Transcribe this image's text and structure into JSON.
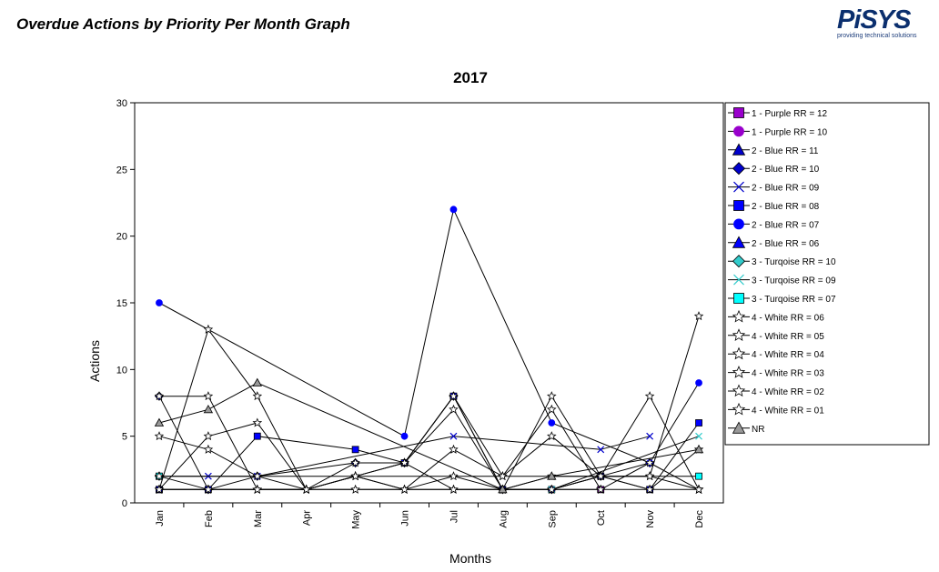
{
  "page_title": "Overdue Actions by Priority Per Month Graph",
  "logo": {
    "wordmark": "PiSYS",
    "tagline": "providing technical solutions"
  },
  "chart_data": {
    "type": "line",
    "title": "2017",
    "xlabel": "Months",
    "ylabel": "Actions",
    "ylim": [
      0,
      30
    ],
    "yticks": [
      0,
      5,
      10,
      15,
      20,
      25,
      30
    ],
    "grid": false,
    "legend_position": "right",
    "categories": [
      "Jan",
      "Feb",
      "Mar",
      "Apr",
      "May",
      "Jun",
      "Jul",
      "Aug",
      "Sep",
      "Oct",
      "Nov",
      "Dec"
    ],
    "series": [
      {
        "name": "1 - Purple RR = 12",
        "marker": "square",
        "fill": "#9900cc",
        "values": [
          1,
          null,
          null,
          null,
          null,
          null,
          null,
          null,
          null,
          1,
          null,
          null
        ]
      },
      {
        "name": "1 - Purple RR = 10",
        "marker": "circle",
        "fill": "#9900cc",
        "values": [
          null,
          null,
          null,
          null,
          null,
          null,
          null,
          null,
          null,
          null,
          null,
          null
        ]
      },
      {
        "name": "2 - Blue RR = 11",
        "marker": "triangle",
        "fill": "#0000cc",
        "values": [
          null,
          null,
          null,
          null,
          null,
          null,
          null,
          null,
          null,
          null,
          null,
          null
        ]
      },
      {
        "name": "2 - Blue RR = 10",
        "marker": "diamond",
        "fill": "#0000cc",
        "values": [
          8,
          1,
          2,
          null,
          3,
          3,
          8,
          1,
          1,
          2,
          3,
          null
        ]
      },
      {
        "name": "2 - Blue RR = 09",
        "marker": "x",
        "fill": "#0000cc",
        "values": [
          2,
          2,
          2,
          null,
          null,
          null,
          5,
          null,
          null,
          4,
          5,
          null
        ]
      },
      {
        "name": "2 - Blue RR = 08",
        "marker": "square",
        "fill": "#0000ff",
        "values": [
          1,
          1,
          5,
          null,
          4,
          3,
          8,
          1,
          1,
          2,
          1,
          6
        ]
      },
      {
        "name": "2 - Blue RR = 07",
        "marker": "circle",
        "fill": "#0000ff",
        "values": [
          15,
          null,
          null,
          null,
          null,
          5,
          22,
          null,
          6,
          null,
          3,
          9
        ]
      },
      {
        "name": "2 - Blue RR = 06",
        "marker": "triangle",
        "fill": "#0000ff",
        "values": [
          null,
          null,
          null,
          null,
          null,
          null,
          null,
          null,
          null,
          null,
          null,
          null
        ]
      },
      {
        "name": "3 - Turqoise RR = 10",
        "marker": "diamond",
        "fill": "#33cccc",
        "values": [
          2,
          null,
          null,
          null,
          null,
          null,
          null,
          null,
          null,
          null,
          null,
          null
        ]
      },
      {
        "name": "3 - Turqoise RR = 09",
        "marker": "x",
        "fill": "#33cccc",
        "values": [
          null,
          null,
          null,
          null,
          null,
          null,
          null,
          null,
          1,
          null,
          null,
          5
        ]
      },
      {
        "name": "3 - Turqoise RR = 07",
        "marker": "square",
        "fill": "#00ffff",
        "values": [
          2,
          null,
          null,
          null,
          null,
          null,
          null,
          null,
          null,
          null,
          null,
          2
        ]
      },
      {
        "name": "4 - White RR = 06",
        "marker": "star",
        "fill": "#ffffff",
        "values": [
          1,
          13,
          8,
          1,
          2,
          3,
          7,
          1,
          8,
          2,
          8,
          1
        ]
      },
      {
        "name": "4 - White RR = 05",
        "marker": "star",
        "fill": "#ffffff",
        "values": [
          5,
          4,
          2,
          1,
          2,
          1,
          4,
          2,
          5,
          2,
          2,
          14
        ]
      },
      {
        "name": "4 - White RR = 04",
        "marker": "star",
        "fill": "#ffffff",
        "values": [
          8,
          8,
          1,
          1,
          3,
          3,
          8,
          2,
          7,
          1,
          1,
          4
        ]
      },
      {
        "name": "4 - White RR = 03",
        "marker": "star",
        "fill": "#ffffff",
        "values": [
          1,
          5,
          6,
          1,
          2,
          1,
          1,
          1,
          1,
          1,
          3,
          1
        ]
      },
      {
        "name": "4 - White RR = 02",
        "marker": "star",
        "fill": "#ffffff",
        "values": [
          1,
          1,
          1,
          1,
          2,
          3,
          1,
          1,
          1,
          2,
          2,
          1
        ]
      },
      {
        "name": "4 - White RR = 01",
        "marker": "star",
        "fill": "#ffffff",
        "values": [
          2,
          1,
          1,
          1,
          1,
          1,
          2,
          1,
          2,
          2,
          1,
          1
        ]
      },
      {
        "name": "NR",
        "marker": "triangle",
        "fill": "#999999",
        "values": [
          6,
          7,
          9,
          null,
          null,
          null,
          null,
          1,
          2,
          null,
          null,
          4
        ]
      }
    ]
  }
}
